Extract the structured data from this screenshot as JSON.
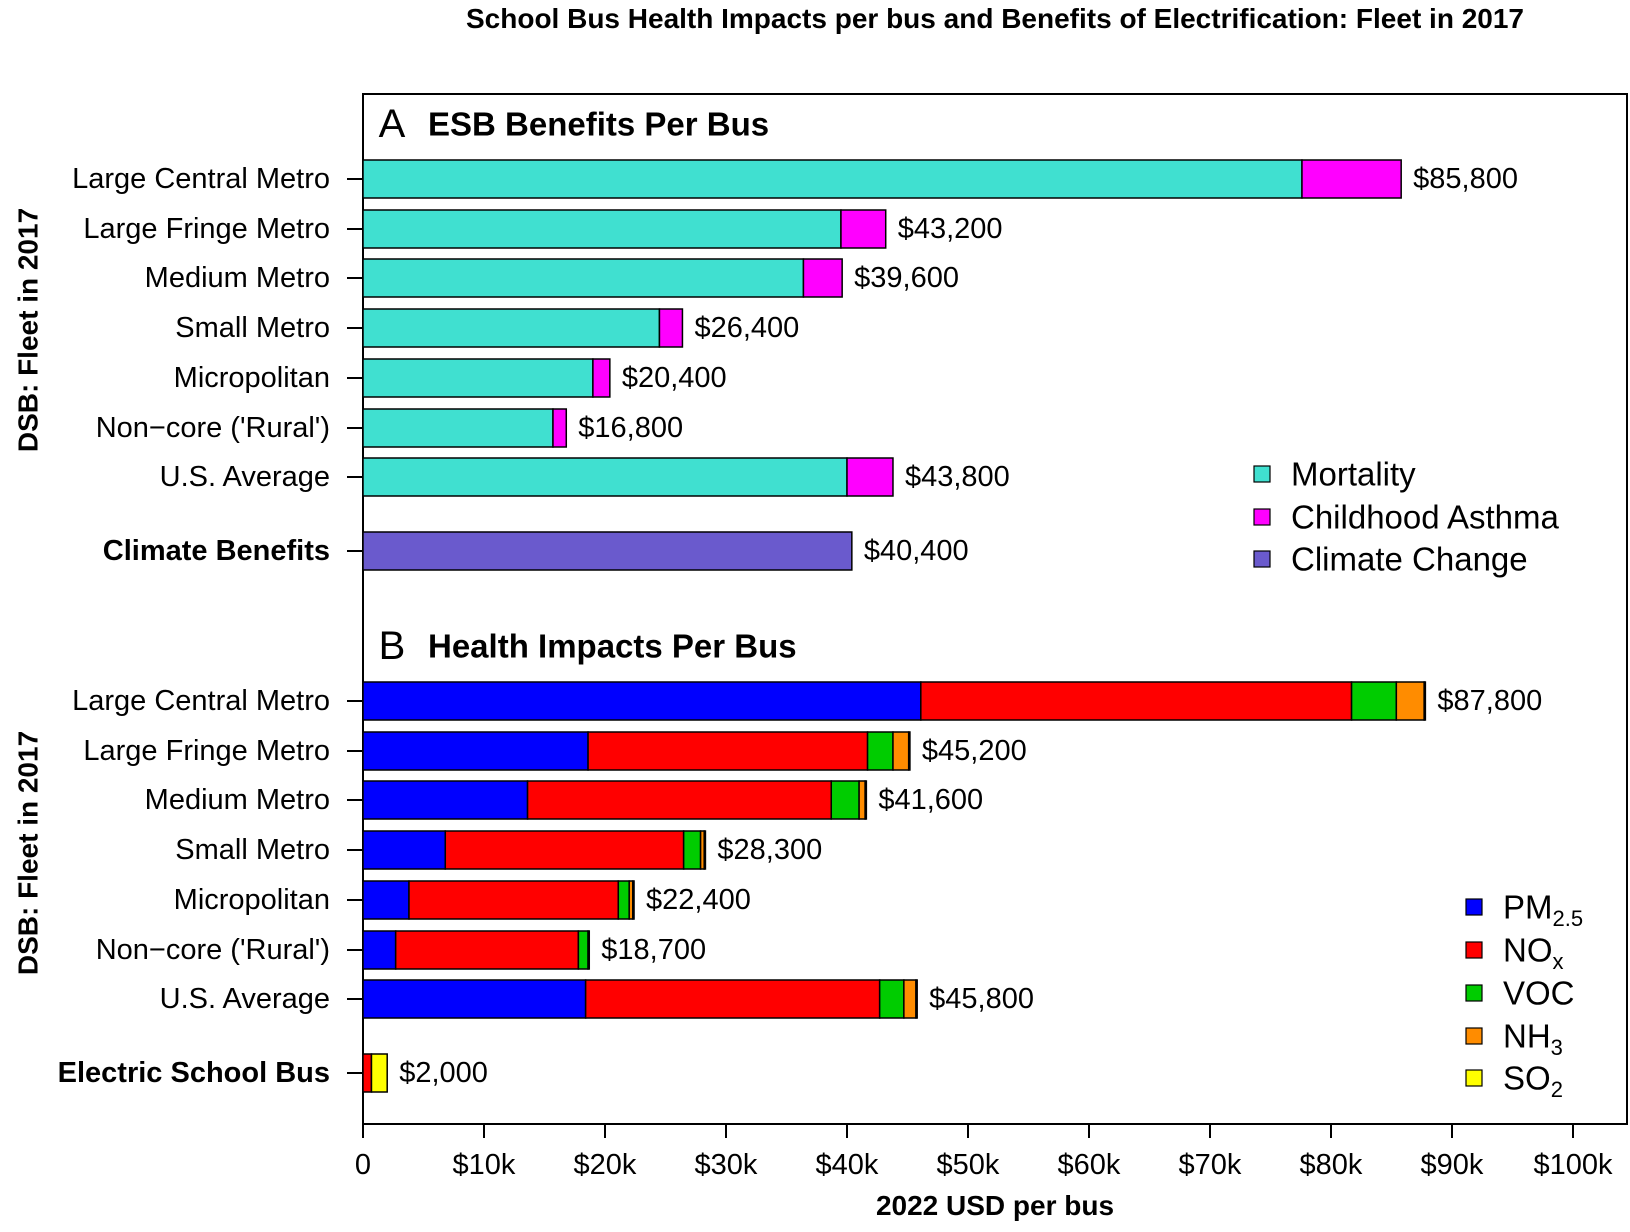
{
  "chart_data": {
    "type": "bar",
    "orientation": "horizontal",
    "stacked": true,
    "title": "School Bus Health Impacts per bus and Benefits of Electrification: Fleet in 2017",
    "xlabel": "2022 USD per bus",
    "xlim": [
      0,
      105000
    ],
    "xticks": [
      {
        "value": 0,
        "label": "0"
      },
      {
        "value": 10000,
        "label": "$10k"
      },
      {
        "value": 20000,
        "label": "$20k"
      },
      {
        "value": 30000,
        "label": "$30k"
      },
      {
        "value": 40000,
        "label": "$40k"
      },
      {
        "value": 50000,
        "label": "$50k"
      },
      {
        "value": 60000,
        "label": "$60k"
      },
      {
        "value": 70000,
        "label": "$70k"
      },
      {
        "value": 80000,
        "label": "$80k"
      },
      {
        "value": 90000,
        "label": "$90k"
      },
      {
        "value": 100000,
        "label": "$100k"
      }
    ],
    "legend_placement": "right",
    "panels": [
      {
        "letter": "A",
        "title": "ESB Benefits Per Bus",
        "ylabel": "DSB: Fleet in 2017",
        "series": [
          {
            "name": "Mortality",
            "color": "#40E0D0"
          },
          {
            "name": "Childhood Asthma",
            "color": "#FF00FF"
          },
          {
            "name": "Climate Change",
            "color": "#6A5ACD"
          }
        ],
        "rows": [
          {
            "label": "Large Central Metro",
            "bold": false,
            "values": [
              77600,
              8200,
              0
            ],
            "total_label": "$85,800"
          },
          {
            "label": "Large Fringe Metro",
            "bold": false,
            "values": [
              39500,
              3700,
              0
            ],
            "total_label": "$43,200"
          },
          {
            "label": "Medium Metro",
            "bold": false,
            "values": [
              36400,
              3200,
              0
            ],
            "total_label": "$39,600"
          },
          {
            "label": "Small Metro",
            "bold": false,
            "values": [
              24500,
              1900,
              0
            ],
            "total_label": "$26,400"
          },
          {
            "label": "Micropolitan",
            "bold": false,
            "values": [
              19000,
              1400,
              0
            ],
            "total_label": "$20,400"
          },
          {
            "label": "Non−core ('Rural')",
            "bold": false,
            "values": [
              15700,
              1100,
              0
            ],
            "total_label": "$16,800"
          },
          {
            "label": "U.S. Average",
            "bold": false,
            "values": [
              40000,
              3800,
              0
            ],
            "total_label": "$43,800"
          },
          {
            "label": "Climate Benefits",
            "bold": true,
            "values": [
              0,
              0,
              40400
            ],
            "total_label": "$40,400"
          }
        ]
      },
      {
        "letter": "B",
        "title": "Health Impacts Per Bus",
        "ylabel": "DSB: Fleet in 2017",
        "series": [
          {
            "name": "PM",
            "sub": "2.5",
            "color": "#0000FF"
          },
          {
            "name": "NO",
            "sub": "x",
            "color": "#FF0000"
          },
          {
            "name": "VOC",
            "sub": "",
            "color": "#00CC00"
          },
          {
            "name": "NH",
            "sub": "3",
            "color": "#FF8C00"
          },
          {
            "name": "SO",
            "sub": "2",
            "color": "#FFFF00"
          }
        ],
        "rows": [
          {
            "label": "Large Central Metro",
            "bold": false,
            "values": [
              46100,
              35600,
              3700,
              2300,
              100
            ],
            "total_label": "$87,800"
          },
          {
            "label": "Large Fringe Metro",
            "bold": false,
            "values": [
              18600,
              23100,
              2100,
              1300,
              100
            ],
            "total_label": "$45,200"
          },
          {
            "label": "Medium Metro",
            "bold": false,
            "values": [
              13600,
              25100,
              2300,
              500,
              100
            ],
            "total_label": "$41,600"
          },
          {
            "label": "Small Metro",
            "bold": false,
            "values": [
              6800,
              19700,
              1400,
              300,
              100
            ],
            "total_label": "$28,300"
          },
          {
            "label": "Micropolitan",
            "bold": false,
            "values": [
              3800,
              17300,
              900,
              300,
              100
            ],
            "total_label": "$22,400"
          },
          {
            "label": "Non−core ('Rural')",
            "bold": false,
            "values": [
              2700,
              15100,
              800,
              100,
              0
            ],
            "total_label": "$18,700"
          },
          {
            "label": "U.S. Average",
            "bold": false,
            "values": [
              18400,
              24300,
              2000,
              1000,
              100
            ],
            "total_label": "$45,800"
          },
          {
            "label": "Electric School Bus",
            "bold": true,
            "values": [
              0,
              700,
              0,
              0,
              1300
            ],
            "total_label": "$2,000"
          }
        ]
      }
    ]
  }
}
